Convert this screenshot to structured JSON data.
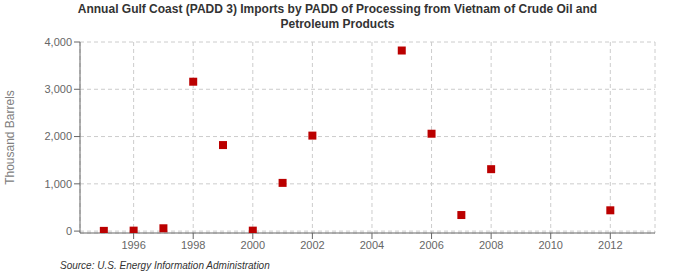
{
  "chart_data": {
    "type": "scatter",
    "title": "Annual Gulf Coast (PADD 3) Imports by PADD of Processing from Vietnam of Crude Oil and\nPetroleum Products",
    "y_label": "Thousand Barrels",
    "annotation": "Source: U.S. Energy Information Administration",
    "x": [
      1995,
      1996,
      1997,
      1998,
      1999,
      2000,
      2001,
      2002,
      2005,
      2006,
      2007,
      2008,
      2012
    ],
    "values": [
      5,
      10,
      60,
      3160,
      1820,
      10,
      1020,
      2020,
      3820,
      2060,
      340,
      1310,
      440
    ],
    "color": "#bb0000",
    "marker": "square",
    "xlim": [
      1994.2,
      2013.5
    ],
    "ylim": [
      -40,
      4000
    ],
    "xticks": [
      1996,
      1998,
      2000,
      2002,
      2004,
      2006,
      2008,
      2010,
      2012
    ],
    "yticks": [
      0,
      {
        "value": 1000,
        "label": "1,000"
      },
      {
        "value": 2000,
        "label": "2,000"
      },
      {
        "value": 3000,
        "label": "3,000"
      },
      {
        "value": 4000,
        "label": "4,000"
      }
    ],
    "grid": true
  }
}
